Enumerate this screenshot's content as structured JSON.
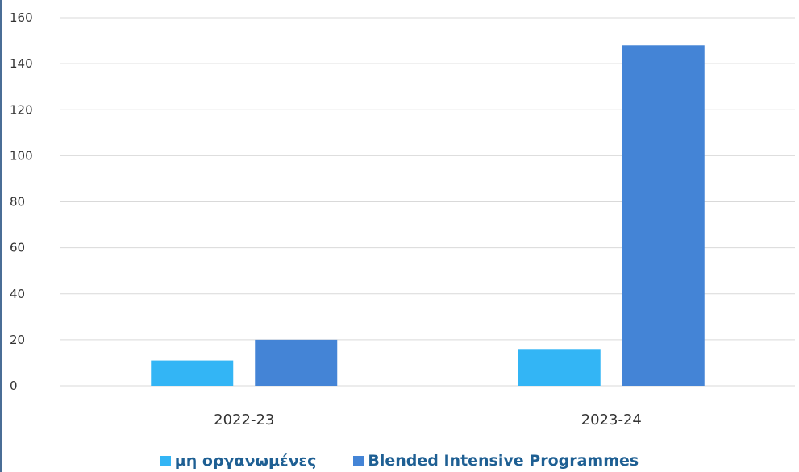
{
  "chart_data": {
    "type": "bar",
    "title": "",
    "xlabel": "",
    "ylabel": "",
    "categories": [
      "2022-23",
      "2023-24"
    ],
    "series": [
      {
        "name": "μη οργανωμένες",
        "color": "#33b5f5",
        "values": [
          11,
          16
        ]
      },
      {
        "name": "Blended Intensive Programmes",
        "color": "#4484d6",
        "values": [
          20,
          148
        ]
      }
    ],
    "ylim": [
      0,
      160
    ],
    "yticks": [
      "0",
      "20",
      "40",
      "60",
      "80",
      "100",
      "120",
      "140",
      "160"
    ],
    "grid": true,
    "legend_position": "bottom"
  }
}
